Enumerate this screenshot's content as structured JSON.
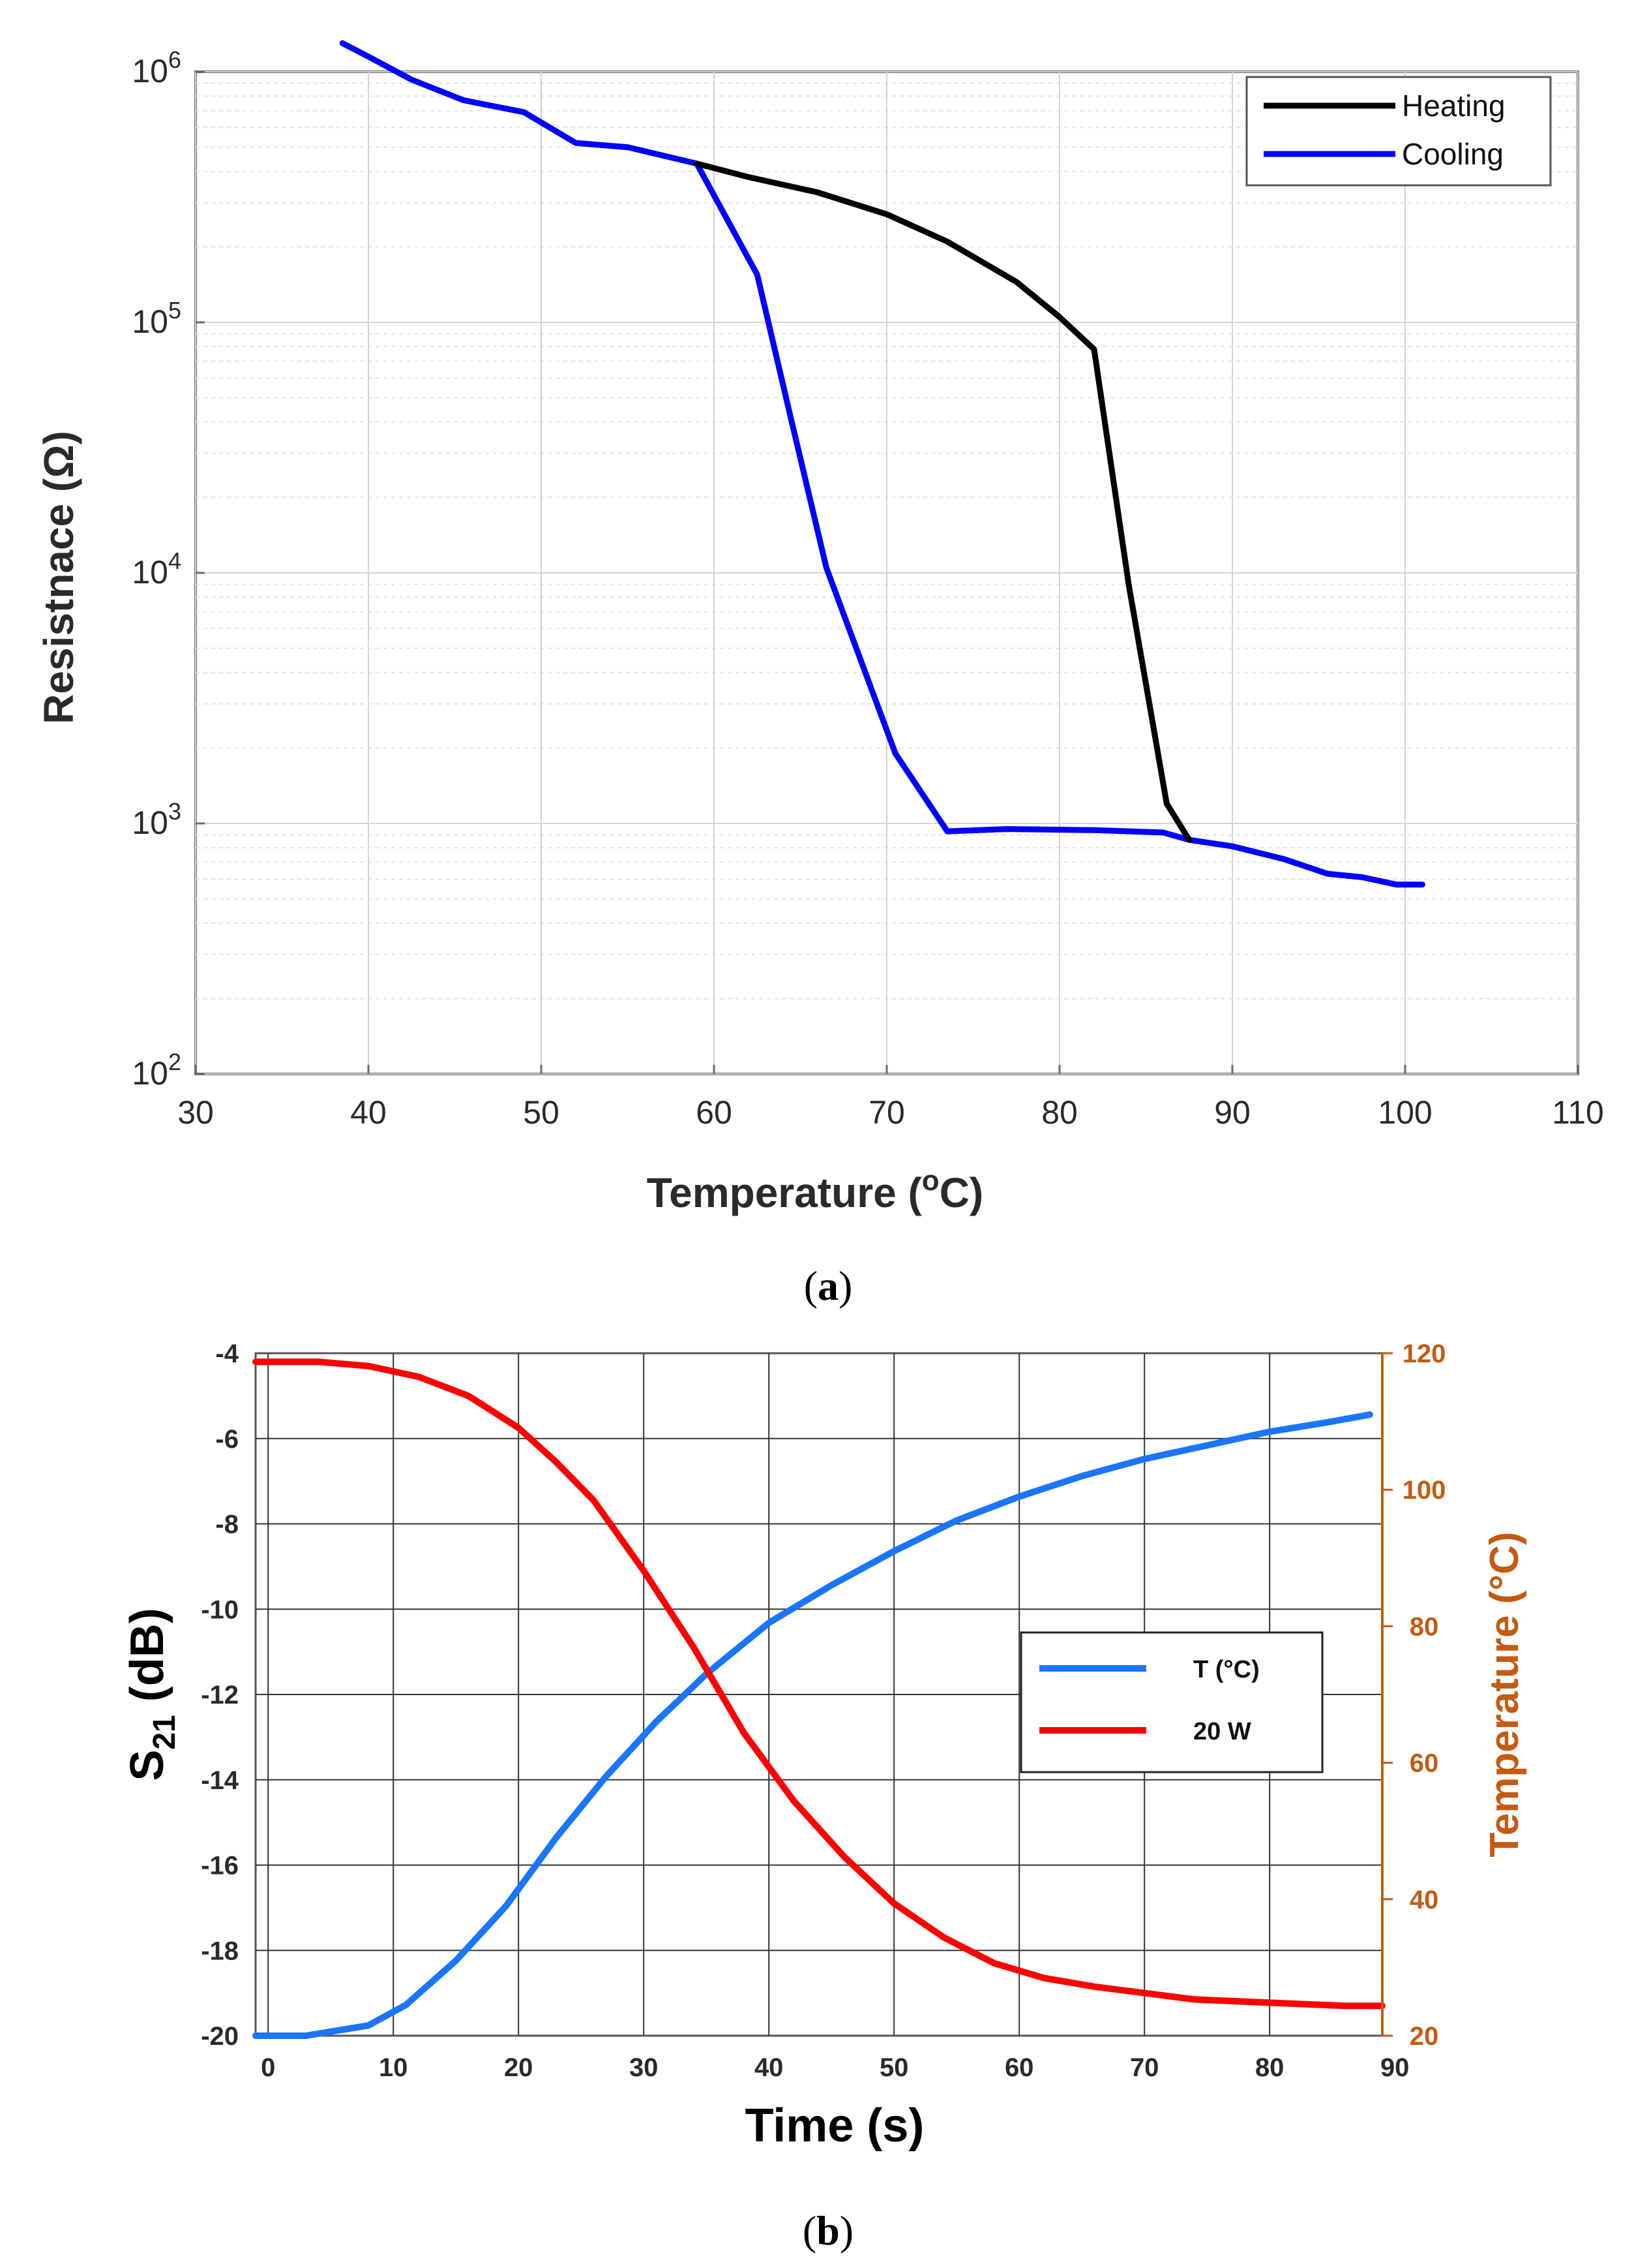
{
  "chart_data": [
    {
      "type": "line",
      "panel_label": "a",
      "xlabel_main": "Temperature (",
      "xlabel_sup": "o",
      "xlabel_end": "C)",
      "ylabel": "Resistnace (Ω)",
      "xlim": [
        30,
        110
      ],
      "ylim": [
        100,
        1000000
      ],
      "yscale": "log",
      "grid": true,
      "legend_position": "top-right",
      "x_ticks": [
        "30",
        "40",
        "50",
        "60",
        "70",
        "80",
        "90",
        "100",
        "110"
      ],
      "y_ticks": [
        {
          "base": "10",
          "exp": "2"
        },
        {
          "base": "10",
          "exp": "3"
        },
        {
          "base": "10",
          "exp": "4"
        },
        {
          "base": "10",
          "exp": "5"
        },
        {
          "base": "10",
          "exp": "6"
        }
      ],
      "series": [
        {
          "name": "Heating",
          "color": "#000000",
          "x": [
            59,
            62,
            66,
            70,
            73.5,
            77.5,
            80,
            82,
            84,
            86.2,
            87.5
          ],
          "y": [
            430000,
            380000,
            330000,
            270000,
            210000,
            145000,
            105000,
            78000,
            9000,
            1200,
            860
          ]
        },
        {
          "name": "Cooling",
          "color": "#0000ff",
          "x": [
            38.5,
            40,
            42.5,
            45.5,
            49,
            52,
            55,
            59,
            62.5,
            64.5,
            66.5,
            70.5,
            73.5,
            77,
            82,
            86,
            87.5,
            90,
            93,
            95.5,
            97.5,
            99.5,
            101
          ],
          "y": [
            1300000,
            1150000,
            930000,
            770000,
            690000,
            520000,
            500000,
            430000,
            155000,
            40000,
            10500,
            1900,
            930,
            950,
            940,
            920,
            860,
            810,
            720,
            630,
            610,
            570,
            570
          ]
        }
      ]
    },
    {
      "type": "line",
      "panel_label": "b",
      "xlabel": "Time (s)",
      "ylabel_main": "S",
      "ylabel_sub": "21",
      "ylabel_end": " (dB)",
      "y2label": "Temperature (°C)",
      "xlim": [
        -1,
        89
      ],
      "ylim": [
        -20,
        -4
      ],
      "y2lim": [
        20,
        120
      ],
      "grid": true,
      "legend_position": "center-right",
      "x_ticks": [
        "0",
        "10",
        "20",
        "30",
        "40",
        "50",
        "60",
        "70",
        "80",
        "90"
      ],
      "y_ticks": [
        "-4",
        "-6",
        "-8",
        "-10",
        "-12",
        "-14",
        "-16",
        "-18",
        "-20"
      ],
      "y2_ticks": [
        "120",
        "100",
        "80",
        "60",
        "40",
        "20"
      ],
      "colors": {
        "y2_axis": "#c55a11"
      },
      "series": [
        {
          "name": "T (°C)",
          "color": "#1a75ff",
          "axis": "right",
          "x": [
            -1,
            3,
            8,
            11,
            15,
            19,
            23,
            27,
            31,
            35,
            40,
            45,
            50,
            55,
            60,
            65,
            70,
            75,
            80,
            85,
            88
          ],
          "y": [
            20,
            20,
            21.5,
            24.5,
            31,
            39,
            49,
            58,
            66,
            73,
            80.5,
            86,
            91,
            95.5,
            99,
            102,
            104.5,
            106.5,
            108.5,
            110,
            111
          ]
        },
        {
          "name": "20 W",
          "color": "#ff0000",
          "axis": "left",
          "x": [
            -1,
            4,
            8,
            12,
            16,
            20,
            23,
            26,
            30,
            34,
            38,
            42,
            46,
            50,
            54,
            58,
            62,
            66,
            70,
            74,
            78,
            82,
            86,
            89
          ],
          "y": [
            -4.2,
            -4.2,
            -4.3,
            -4.55,
            -5.0,
            -5.75,
            -6.55,
            -7.45,
            -9.1,
            -10.9,
            -12.9,
            -14.5,
            -15.8,
            -16.9,
            -17.7,
            -18.3,
            -18.65,
            -18.85,
            -19.0,
            -19.15,
            -19.2,
            -19.25,
            -19.3,
            -19.3
          ]
        }
      ]
    }
  ]
}
